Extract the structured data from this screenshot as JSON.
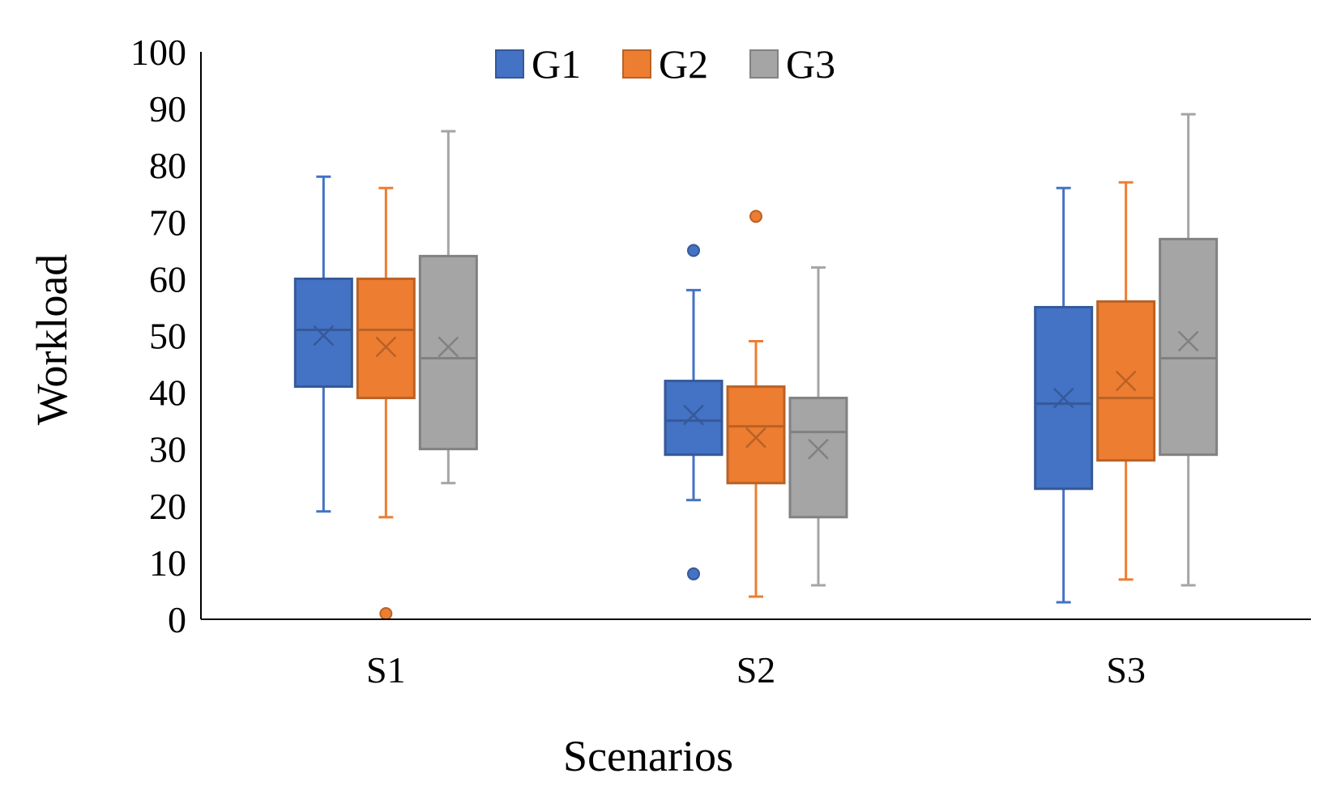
{
  "chart_data": {
    "type": "boxplot",
    "title": "",
    "xlabel": "Scenarios",
    "ylabel": "Workload",
    "ylim": [
      0,
      100
    ],
    "yticks": [
      0,
      10,
      20,
      30,
      40,
      50,
      60,
      70,
      80,
      90,
      100
    ],
    "categories": [
      "S1",
      "S2",
      "S3"
    ],
    "legend_position": "top-center",
    "series": [
      {
        "name": "G1",
        "color": "#4472C4",
        "boxes": [
          {
            "min": 19,
            "q1": 41,
            "median": 51,
            "q3": 60,
            "max": 78,
            "mean": 50,
            "outliers": []
          },
          {
            "min": 21,
            "q1": 29,
            "median": 35,
            "q3": 42,
            "max": 58,
            "mean": 36,
            "outliers": [
              65,
              8
            ]
          },
          {
            "min": 3,
            "q1": 23,
            "median": 38,
            "q3": 55,
            "max": 76,
            "mean": 39,
            "outliers": []
          }
        ]
      },
      {
        "name": "G2",
        "color": "#ED7D31",
        "boxes": [
          {
            "min": 18,
            "q1": 39,
            "median": 51,
            "q3": 60,
            "max": 76,
            "mean": 48,
            "outliers": [
              1
            ]
          },
          {
            "min": 4,
            "q1": 24,
            "median": 34,
            "q3": 41,
            "max": 49,
            "mean": 32,
            "outliers": [
              71
            ]
          },
          {
            "min": 7,
            "q1": 28,
            "median": 39,
            "q3": 56,
            "max": 77,
            "mean": 42,
            "outliers": []
          }
        ]
      },
      {
        "name": "G3",
        "color": "#A5A5A5",
        "boxes": [
          {
            "min": 24,
            "q1": 30,
            "median": 46,
            "q3": 64,
            "max": 86,
            "mean": 48,
            "outliers": []
          },
          {
            "min": 6,
            "q1": 18,
            "median": 33,
            "q3": 39,
            "max": 62,
            "mean": 30,
            "outliers": []
          },
          {
            "min": 6,
            "q1": 29,
            "median": 46,
            "q3": 67,
            "max": 89,
            "mean": 49,
            "outliers": []
          }
        ]
      }
    ]
  }
}
